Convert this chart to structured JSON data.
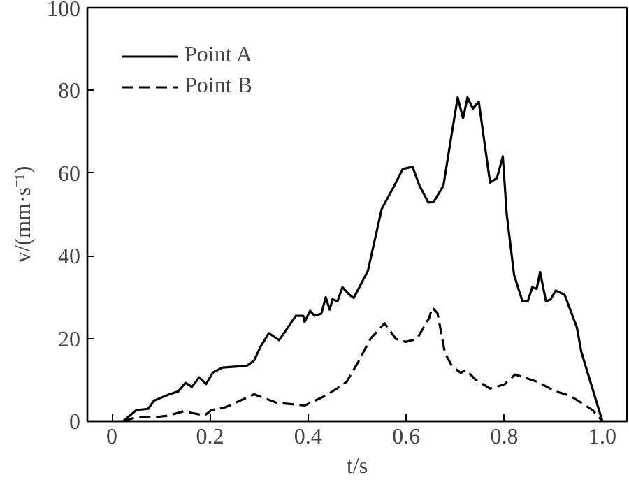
{
  "chart_data": {
    "type": "line",
    "xlabel": "t/s",
    "ylabel": "v/(mm·s⁻¹)",
    "xlim": [
      -0.05,
      1.05
    ],
    "ylim": [
      0,
      100
    ],
    "xticks": [
      {
        "value": 0,
        "label": "0"
      },
      0.2,
      0.4,
      0.6,
      0.8,
      {
        "value": 1,
        "label": "1.0"
      }
    ],
    "yticks": [
      0,
      20,
      40,
      60,
      80,
      100
    ],
    "grid": false,
    "legend": "top left",
    "marker": "none",
    "series": [
      {
        "name": "Point A",
        "color": "#000000",
        "line_style": "solid",
        "x": [
          0.023,
          0.05,
          0.074,
          0.086,
          0.117,
          0.135,
          0.15,
          0.163,
          0.178,
          0.192,
          0.206,
          0.226,
          0.275,
          0.29,
          0.303,
          0.32,
          0.341,
          0.375,
          0.39,
          0.393,
          0.404,
          0.413,
          0.427,
          0.436,
          0.444,
          0.45,
          0.46,
          0.47,
          0.484,
          0.493,
          0.522,
          0.55,
          0.576,
          0.593,
          0.613,
          0.627,
          0.645,
          0.656,
          0.676,
          0.69,
          0.705,
          0.716,
          0.725,
          0.736,
          0.748,
          0.771,
          0.785,
          0.797,
          0.805,
          0.82,
          0.837,
          0.848,
          0.857,
          0.866,
          0.873,
          0.885,
          0.894,
          0.905,
          0.923,
          0.948,
          0.957,
          1.0
        ],
        "values": [
          0,
          2.7,
          3,
          5,
          6.5,
          7.2,
          9.3,
          8.3,
          10.6,
          9,
          11.8,
          13,
          13.4,
          14.7,
          18,
          21.3,
          19.6,
          25.5,
          25.5,
          24,
          26.7,
          25.5,
          26,
          30,
          27,
          29.5,
          29,
          32.4,
          30.6,
          29.8,
          36.4,
          51.3,
          57,
          61,
          61.5,
          57,
          52.9,
          53,
          57,
          67.4,
          78.3,
          73.2,
          78.3,
          75.6,
          77.3,
          57.7,
          58.8,
          64,
          50,
          35.4,
          29,
          29,
          32.4,
          32,
          36.1,
          29,
          29.4,
          31.6,
          30.6,
          22.7,
          16.8,
          0
        ]
      },
      {
        "name": "Point B",
        "color": "#000000",
        "line_style": "dashed",
        "x": [
          0.023,
          0.05,
          0.089,
          0.117,
          0.146,
          0.189,
          0.203,
          0.232,
          0.29,
          0.335,
          0.393,
          0.436,
          0.464,
          0.479,
          0.504,
          0.527,
          0.556,
          0.579,
          0.599,
          0.622,
          0.647,
          0.653,
          0.664,
          0.679,
          0.693,
          0.711,
          0.722,
          0.742,
          0.771,
          0.8,
          0.822,
          0.866,
          0.905,
          0.934,
          0.98,
          1.0
        ],
        "values": [
          0,
          1,
          1,
          1.4,
          2.4,
          1.4,
          2.7,
          3.4,
          6.5,
          4.5,
          3.8,
          6.2,
          8.3,
          9.6,
          14.7,
          19.9,
          23.7,
          19.9,
          19.2,
          19.9,
          25,
          27.5,
          26.1,
          16.5,
          13.4,
          11.7,
          12.4,
          10,
          7.9,
          8.9,
          11.3,
          9.6,
          7.2,
          6.2,
          2.7,
          0
        ]
      }
    ]
  }
}
